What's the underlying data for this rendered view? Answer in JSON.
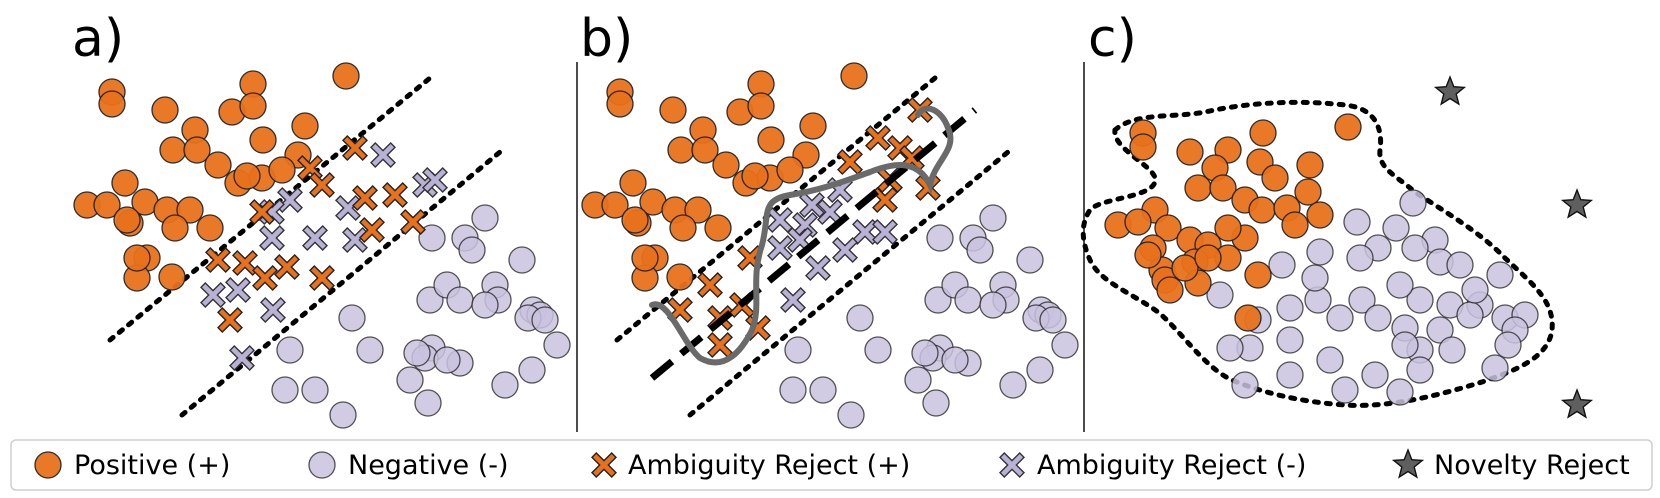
{
  "panels": [
    {
      "label": "a)"
    },
    {
      "label": "b)"
    },
    {
      "label": "c)"
    }
  ],
  "legend": [
    {
      "label": "Positive (+)",
      "marker": "circle",
      "color": "#E8711C"
    },
    {
      "label": "Negative (-)",
      "marker": "circle",
      "color": "#C9C3E0"
    },
    {
      "label": "Ambiguity Reject (+)",
      "marker": "cross",
      "color": "#E8711C"
    },
    {
      "label": "Ambiguity Reject (-)",
      "marker": "cross",
      "color": "#B9B2D6"
    },
    {
      "label": "Novelty Reject",
      "marker": "star",
      "color": "#5f5f5f"
    }
  ],
  "colors": {
    "positive": "#E8711C",
    "negative": "#C9C3E0",
    "reject_negative": "#B9B2D6",
    "novelty": "#5f5f5f"
  }
}
